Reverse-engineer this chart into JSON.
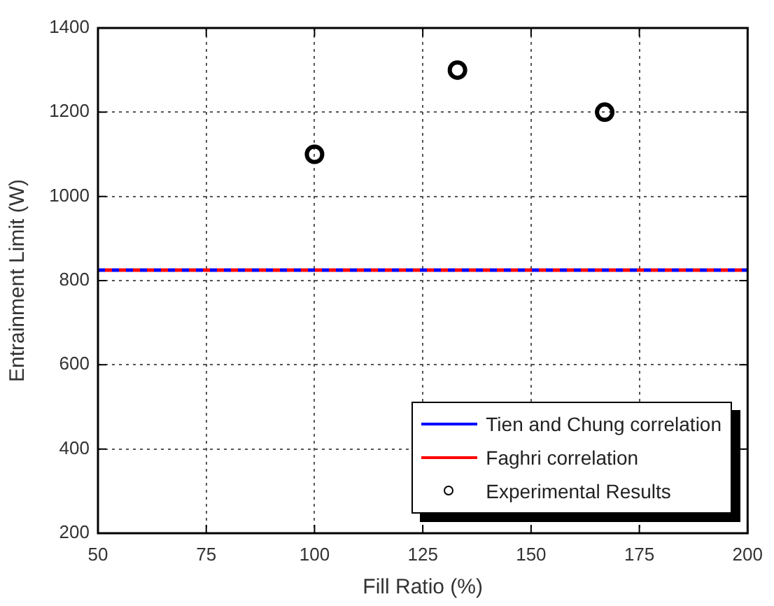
{
  "chart_data": {
    "type": "line",
    "xlabel": "Fill Ratio (%)",
    "ylabel": "Entrainment Limit (W)",
    "xlim": [
      50,
      200
    ],
    "xticks": [
      50,
      75,
      100,
      125,
      150,
      175,
      200
    ],
    "ylim": [
      200,
      1400
    ],
    "yticks": [
      200,
      400,
      600,
      800,
      1000,
      1200,
      1400
    ],
    "grid": true,
    "legend": "bottom right",
    "series": [
      {
        "name": "Tien and Chung correlation",
        "color": "#0000ff",
        "x": [
          50,
          200
        ],
        "values": [
          825,
          825
        ],
        "line_style": "dashed",
        "marker": "none"
      },
      {
        "name": "Faghri correlation",
        "color": "#ff0000",
        "x": [
          50,
          200
        ],
        "values": [
          825,
          825
        ],
        "line_style": "dashed",
        "marker": "none"
      },
      {
        "name": "Experimental Results",
        "type": "scatter",
        "color": "#000000",
        "x": [
          100,
          133,
          167
        ],
        "values": [
          1100,
          1300,
          1200
        ],
        "marker": "circle"
      }
    ]
  }
}
